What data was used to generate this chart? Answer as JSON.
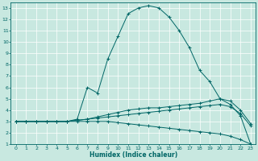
{
  "xlabel": "Humidex (Indice chaleur)",
  "bg_color": "#c8e8e0",
  "line_color": "#006666",
  "grid_color": "#b0d8d0",
  "xlim": [
    -0.5,
    23.5
  ],
  "ylim": [
    1,
    13.5
  ],
  "xticks": [
    0,
    1,
    2,
    3,
    4,
    5,
    6,
    7,
    8,
    9,
    10,
    11,
    12,
    13,
    14,
    15,
    16,
    17,
    18,
    19,
    20,
    21,
    22,
    23
  ],
  "yticks": [
    1,
    2,
    3,
    4,
    5,
    6,
    7,
    8,
    9,
    10,
    11,
    12,
    13
  ],
  "series_y": [
    [
      3.0,
      3.0,
      3.0,
      3.0,
      3.0,
      3.0,
      3.1,
      3.2,
      3.3,
      3.4,
      3.5,
      3.6,
      3.7,
      3.8,
      3.9,
      4.0,
      4.1,
      4.2,
      4.3,
      4.4,
      4.5,
      4.3,
      3.7,
      2.6
    ],
    [
      3.0,
      3.0,
      3.0,
      3.0,
      3.0,
      3.0,
      3.1,
      3.2,
      3.4,
      3.6,
      3.8,
      4.0,
      4.1,
      4.2,
      4.2,
      4.3,
      4.4,
      4.5,
      4.6,
      4.8,
      5.0,
      4.8,
      4.0,
      2.8
    ],
    [
      3.0,
      3.0,
      3.0,
      3.0,
      3.0,
      3.0,
      3.0,
      3.0,
      3.0,
      3.0,
      2.9,
      2.8,
      2.7,
      2.6,
      2.5,
      2.4,
      2.3,
      2.2,
      2.1,
      2.0,
      1.9,
      1.7,
      1.4,
      1.0
    ],
    [
      3.0,
      3.0,
      3.0,
      3.0,
      3.0,
      3.0,
      3.2,
      6.0,
      5.5,
      8.5,
      10.5,
      12.5,
      13.0,
      13.2,
      13.0,
      12.2,
      11.0,
      9.5,
      7.5,
      6.5,
      5.0,
      4.5,
      3.5,
      1.0
    ]
  ]
}
